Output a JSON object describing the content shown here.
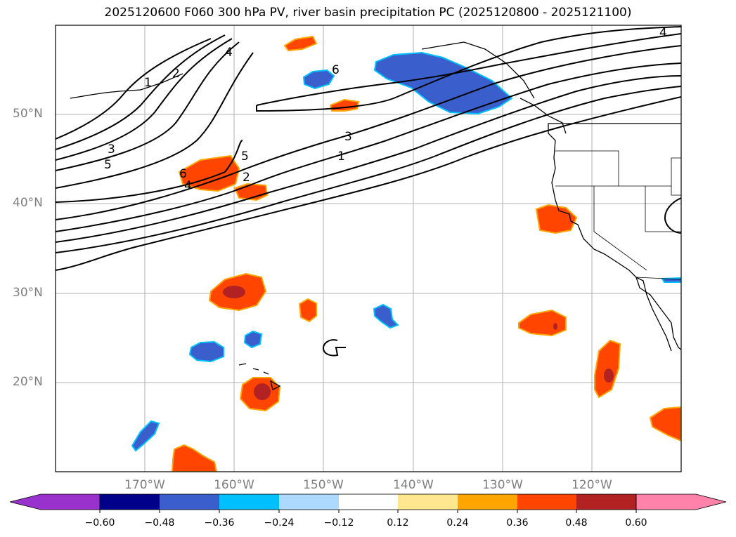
{
  "title": "2025120600 F060 300 hPa PV, river basin precipitation PC (2025120800 - 2025121100)",
  "map": {
    "lat_labels": [
      "50°N",
      "40°N",
      "30°N",
      "20°N"
    ],
    "lon_labels": [
      "170°W",
      "160°W",
      "150°W",
      "140°W",
      "130°W",
      "120°W"
    ],
    "contour_labels": [
      "1",
      "2",
      "4",
      "6",
      "3",
      "5",
      "5",
      "6",
      "4",
      "2",
      "3",
      "1",
      "4"
    ]
  },
  "colorbar": {
    "ticks": [
      "−0.60",
      "−0.48",
      "−0.36",
      "−0.24",
      "−0.12",
      "0.12",
      "0.24",
      "0.36",
      "0.48",
      "0.60"
    ],
    "colors": [
      "#9932cc",
      "#00008b",
      "#3a5fcd",
      "#00bfff",
      "#add8ff",
      "#ffffff",
      "#ffe78f",
      "#ffa500",
      "#ff4500",
      "#b22222",
      "#ff82ab"
    ]
  }
}
